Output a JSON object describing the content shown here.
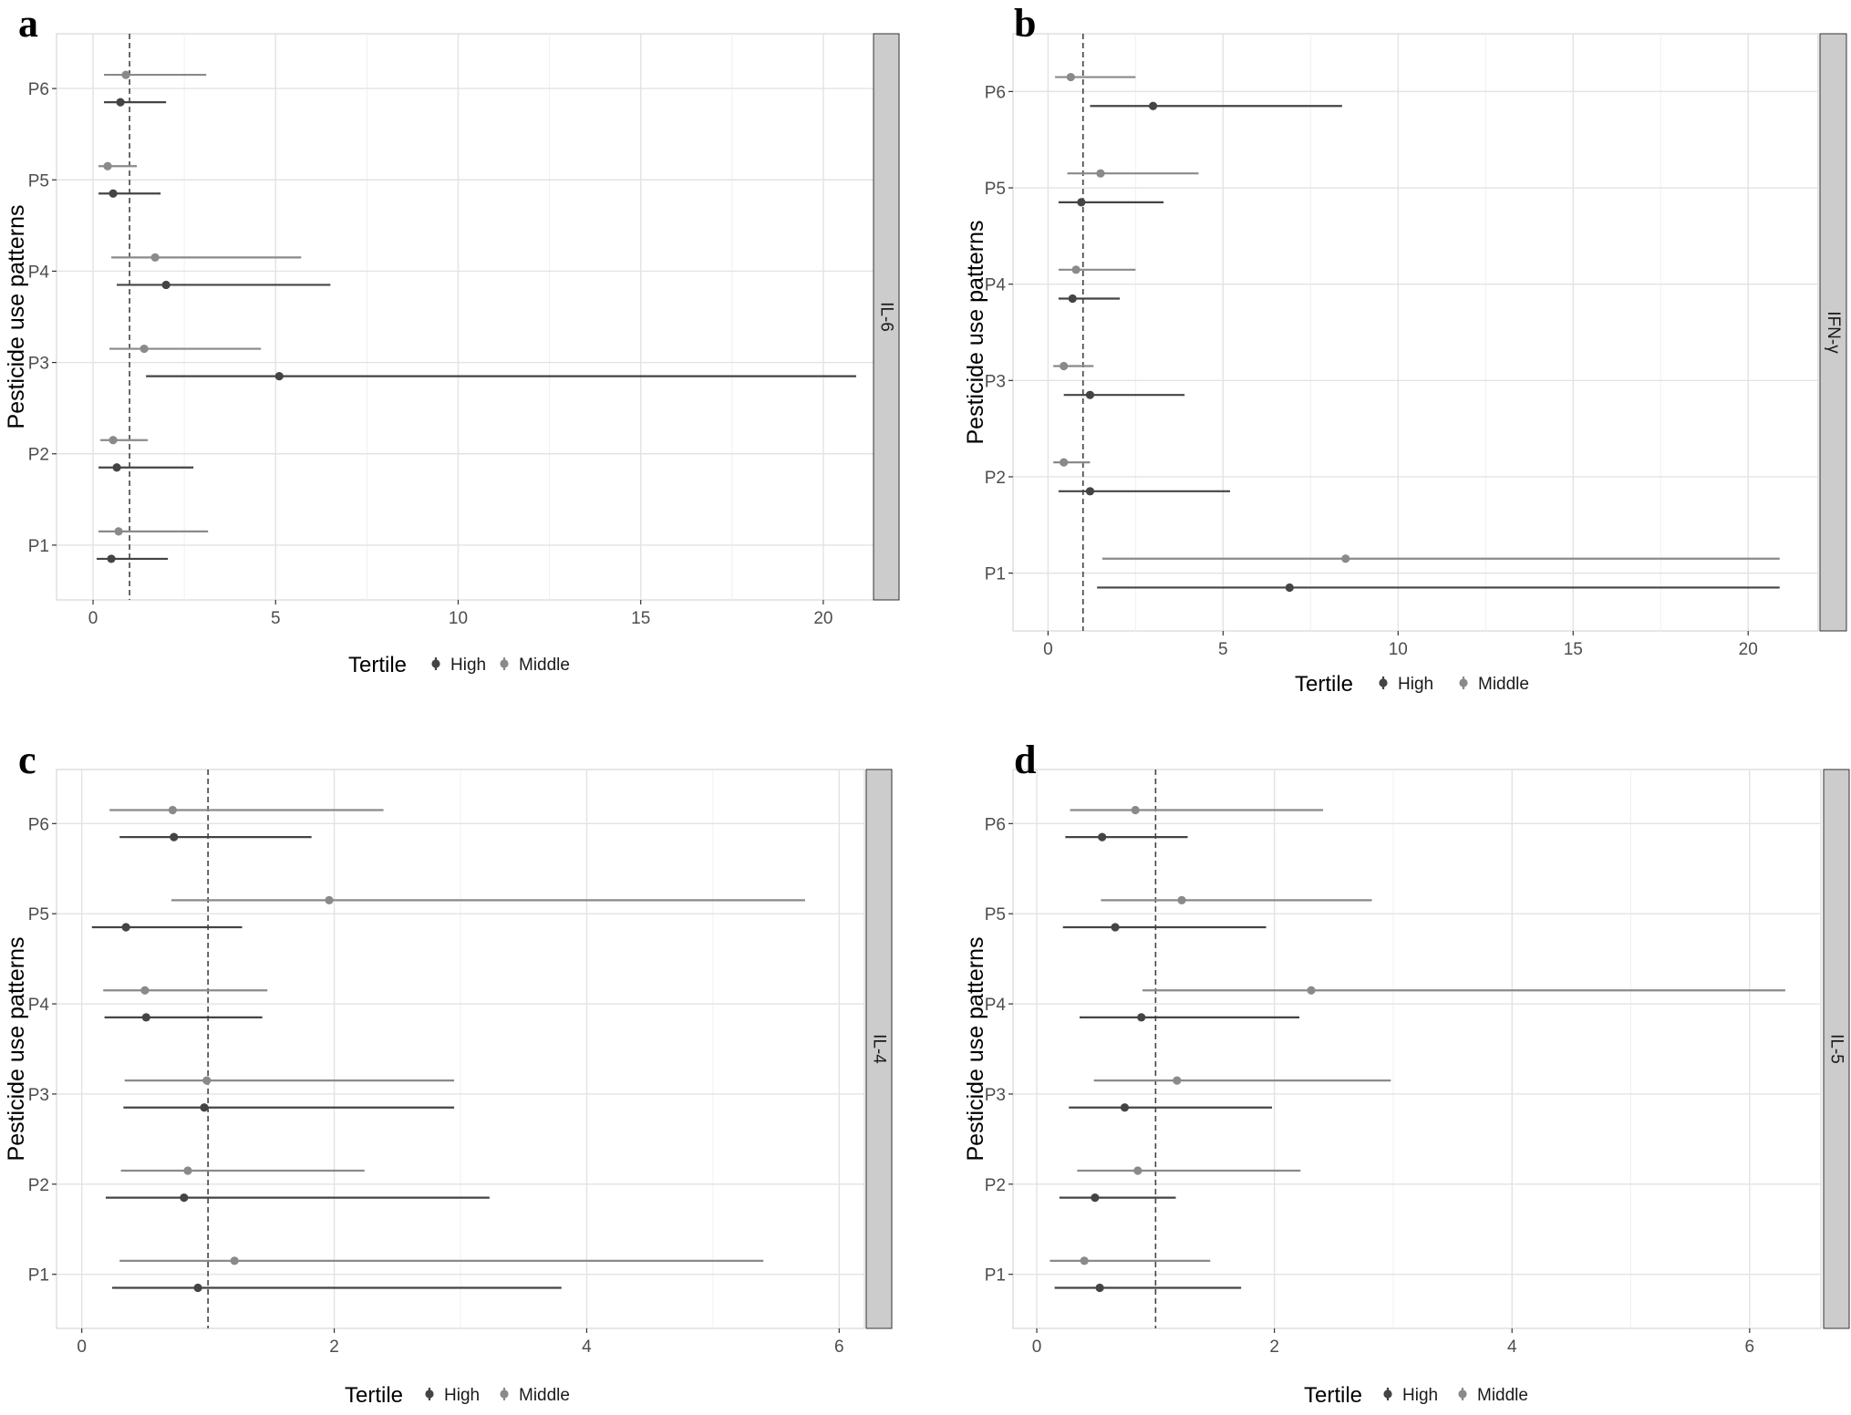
{
  "colors": {
    "high": "#444444",
    "middle": "#8a8a8a",
    "grid": "#e6e6e6",
    "strip": "#cccccc"
  },
  "chart_data": [
    {
      "id": "a",
      "type": "forest",
      "panel_letter": "a",
      "strip_label": "IL-6",
      "ylabel": "Pesticide use patterns",
      "xlim": [
        -1,
        22
      ],
      "xticks": [
        0,
        5,
        10,
        15,
        20
      ],
      "xtick_labels": [
        "0",
        "5",
        "10",
        "15",
        "20"
      ],
      "reference_line": 1,
      "categories": [
        "P6",
        "P5",
        "P4",
        "P3",
        "P2",
        "P1"
      ],
      "legend": {
        "title": "Tertile",
        "items": [
          "High",
          "Middle"
        ]
      },
      "series": [
        {
          "name": "High",
          "estimates": [
            0.75,
            0.55,
            2.0,
            5.1,
            0.65,
            0.5
          ],
          "lower": [
            0.3,
            0.15,
            0.65,
            1.45,
            0.15,
            0.1
          ],
          "upper": [
            2.0,
            1.85,
            6.5,
            20.9,
            2.75,
            2.05
          ]
        },
        {
          "name": "Middle",
          "estimates": [
            0.9,
            0.4,
            1.7,
            1.4,
            0.55,
            0.7
          ],
          "lower": [
            0.3,
            0.15,
            0.5,
            0.45,
            0.2,
            0.15
          ],
          "upper": [
            3.1,
            1.2,
            5.7,
            4.6,
            1.5,
            3.15
          ]
        }
      ]
    },
    {
      "id": "b",
      "type": "forest",
      "panel_letter": "b",
      "strip_label": "IFN-γ",
      "ylabel": "Pesticide use patterns",
      "xlim": [
        -1,
        22
      ],
      "xticks": [
        0,
        5,
        10,
        15,
        20
      ],
      "xtick_labels": [
        "0",
        "5",
        "10",
        "15",
        "20"
      ],
      "reference_line": 1,
      "categories": [
        "P6",
        "P5",
        "P4",
        "P3",
        "P2",
        "P1"
      ],
      "legend": {
        "title": "Tertile",
        "items": [
          "High",
          "Middle"
        ]
      },
      "series": [
        {
          "name": "High",
          "estimates": [
            3.0,
            0.95,
            0.7,
            1.2,
            1.2,
            6.9
          ],
          "lower": [
            1.2,
            0.3,
            0.3,
            0.45,
            0.3,
            1.4
          ],
          "upper": [
            8.4,
            3.3,
            2.05,
            3.9,
            5.2,
            20.9
          ]
        },
        {
          "name": "Middle",
          "estimates": [
            0.65,
            1.5,
            0.8,
            0.45,
            0.45,
            8.5
          ],
          "lower": [
            0.2,
            0.55,
            0.3,
            0.15,
            0.15,
            1.55
          ],
          "upper": [
            2.5,
            4.3,
            2.5,
            1.3,
            1.2,
            20.9
          ]
        }
      ]
    },
    {
      "id": "c",
      "type": "forest",
      "panel_letter": "c",
      "strip_label": "IL-4",
      "ylabel": "Pesticide use patterns",
      "xlim": [
        -0.2,
        6.2
      ],
      "xticks": [
        0,
        2,
        4,
        6
      ],
      "xtick_labels": [
        "0",
        "2",
        "4",
        "6"
      ],
      "reference_line": 1,
      "categories": [
        "P6",
        "P5",
        "P4",
        "P3",
        "P2",
        "P1"
      ],
      "legend": {
        "title": "Tertile",
        "items": [
          "High",
          "Middle"
        ]
      },
      "series": [
        {
          "name": "High",
          "estimates": [
            0.73,
            0.35,
            0.51,
            0.97,
            0.81,
            0.92
          ],
          "lower": [
            0.3,
            0.08,
            0.18,
            0.33,
            0.19,
            0.24
          ],
          "upper": [
            1.82,
            1.27,
            1.43,
            2.95,
            3.23,
            3.8
          ]
        },
        {
          "name": "Middle",
          "estimates": [
            0.72,
            1.96,
            0.5,
            0.99,
            0.84,
            1.21
          ],
          "lower": [
            0.22,
            0.71,
            0.17,
            0.34,
            0.31,
            0.3
          ],
          "upper": [
            2.39,
            5.73,
            1.47,
            2.95,
            2.24,
            5.4
          ]
        }
      ]
    },
    {
      "id": "d",
      "type": "forest",
      "panel_letter": "d",
      "strip_label": "IL-5",
      "ylabel": "Pesticide use patterns",
      "xlim": [
        -0.2,
        6.6
      ],
      "xticks": [
        0,
        2,
        4,
        6
      ],
      "xtick_labels": [
        "0",
        "2",
        "4",
        "6"
      ],
      "reference_line": 1,
      "categories": [
        "P6",
        "P5",
        "P4",
        "P3",
        "P2",
        "P1"
      ],
      "legend": {
        "title": "Tertile",
        "items": [
          "High",
          "Middle"
        ]
      },
      "series": [
        {
          "name": "High",
          "estimates": [
            0.55,
            0.66,
            0.88,
            0.74,
            0.49,
            0.53
          ],
          "lower": [
            0.24,
            0.22,
            0.36,
            0.27,
            0.19,
            0.15
          ],
          "upper": [
            1.27,
            1.93,
            2.21,
            1.98,
            1.17,
            1.72
          ]
        },
        {
          "name": "Middle",
          "estimates": [
            0.83,
            1.22,
            2.31,
            1.18,
            0.85,
            0.4
          ],
          "lower": [
            0.28,
            0.54,
            0.89,
            0.48,
            0.34,
            0.11
          ],
          "upper": [
            2.41,
            2.82,
            6.3,
            2.98,
            2.22,
            1.46
          ]
        }
      ]
    }
  ]
}
